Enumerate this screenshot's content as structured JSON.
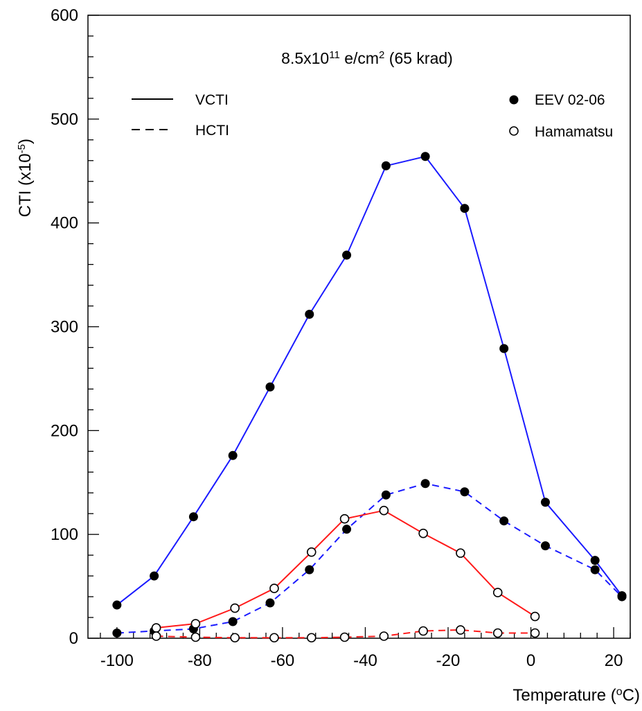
{
  "chart_data": {
    "type": "line",
    "title": "",
    "annotation": {
      "base": "8.5x10",
      "exp": "11",
      "mid": " e/cm",
      "exp2": "2",
      "tail": " (65 krad)"
    },
    "xlabel": {
      "base": "Temperature (",
      "sup": "o",
      "tail": "C)"
    },
    "ylabel": {
      "base": "CTI (x10",
      "sup": "-5",
      "tail": ")"
    },
    "xlim": [
      -107,
      24
    ],
    "ylim": [
      0,
      600
    ],
    "xticks": [
      -100,
      -80,
      -60,
      -40,
      -20,
      0,
      20
    ],
    "xtick_labels": [
      "-100",
      "-80",
      "-60",
      "-40",
      "-20",
      "0",
      "20"
    ],
    "yticks": [
      0,
      100,
      200,
      300,
      400,
      500,
      600
    ],
    "ytick_labels": [
      "0",
      "100",
      "200",
      "300",
      "400",
      "500",
      "600"
    ],
    "grid": false,
    "legend_linestyle": [
      {
        "label": "VCTI",
        "style": "solid"
      },
      {
        "label": "HCTI",
        "style": "dashed"
      }
    ],
    "legend_marker": [
      {
        "label": "EEV 02-06",
        "marker": "filled-circle"
      },
      {
        "label": "Hamamatsu",
        "marker": "open-circle"
      }
    ],
    "colors": {
      "eev": "#1a1aff",
      "hamamatsu": "#ff1a1a"
    },
    "series": [
      {
        "device": "EEV 02-06",
        "kind": "VCTI",
        "style": "solid",
        "marker": "filled",
        "color": "#1a1aff",
        "x": [
          -100,
          -91,
          -81.5,
          -72,
          -63,
          -53.5,
          -44.5,
          -35,
          -25.5,
          -16,
          -6.5,
          3.5,
          15.5,
          22
        ],
        "y": [
          32,
          60,
          117,
          176,
          242,
          312,
          369,
          455,
          464,
          414,
          279,
          131,
          75,
          41
        ]
      },
      {
        "device": "EEV 02-06",
        "kind": "HCTI",
        "style": "dashed",
        "marker": "filled",
        "color": "#1a1aff",
        "x": [
          -100,
          -91,
          -81.5,
          -72,
          -63,
          -53.5,
          -44.5,
          -35,
          -25.5,
          -16,
          -6.5,
          3.5,
          15.5,
          22
        ],
        "y": [
          5,
          7,
          9,
          16,
          34,
          66,
          105,
          138,
          149,
          141,
          113,
          89,
          66,
          40
        ]
      },
      {
        "device": "Hamamatsu",
        "kind": "VCTI",
        "style": "solid",
        "marker": "open",
        "color": "#ff1a1a",
        "x": [
          -90.5,
          -81,
          -71.5,
          -62,
          -53,
          -45,
          -35.5,
          -26,
          -17,
          -8,
          1
        ],
        "y": [
          10,
          14,
          29,
          48,
          83,
          115,
          123,
          101,
          82,
          44,
          21
        ]
      },
      {
        "device": "Hamamatsu",
        "kind": "HCTI",
        "style": "dashed",
        "marker": "open",
        "color": "#ff1a1a",
        "x": [
          -90.5,
          -81,
          -71.5,
          -62,
          -53,
          -45,
          -35.5,
          -26,
          -17,
          -8,
          1
        ],
        "y": [
          2,
          1,
          0.5,
          0.5,
          0.5,
          1,
          2,
          7,
          8,
          5,
          5
        ]
      }
    ]
  }
}
